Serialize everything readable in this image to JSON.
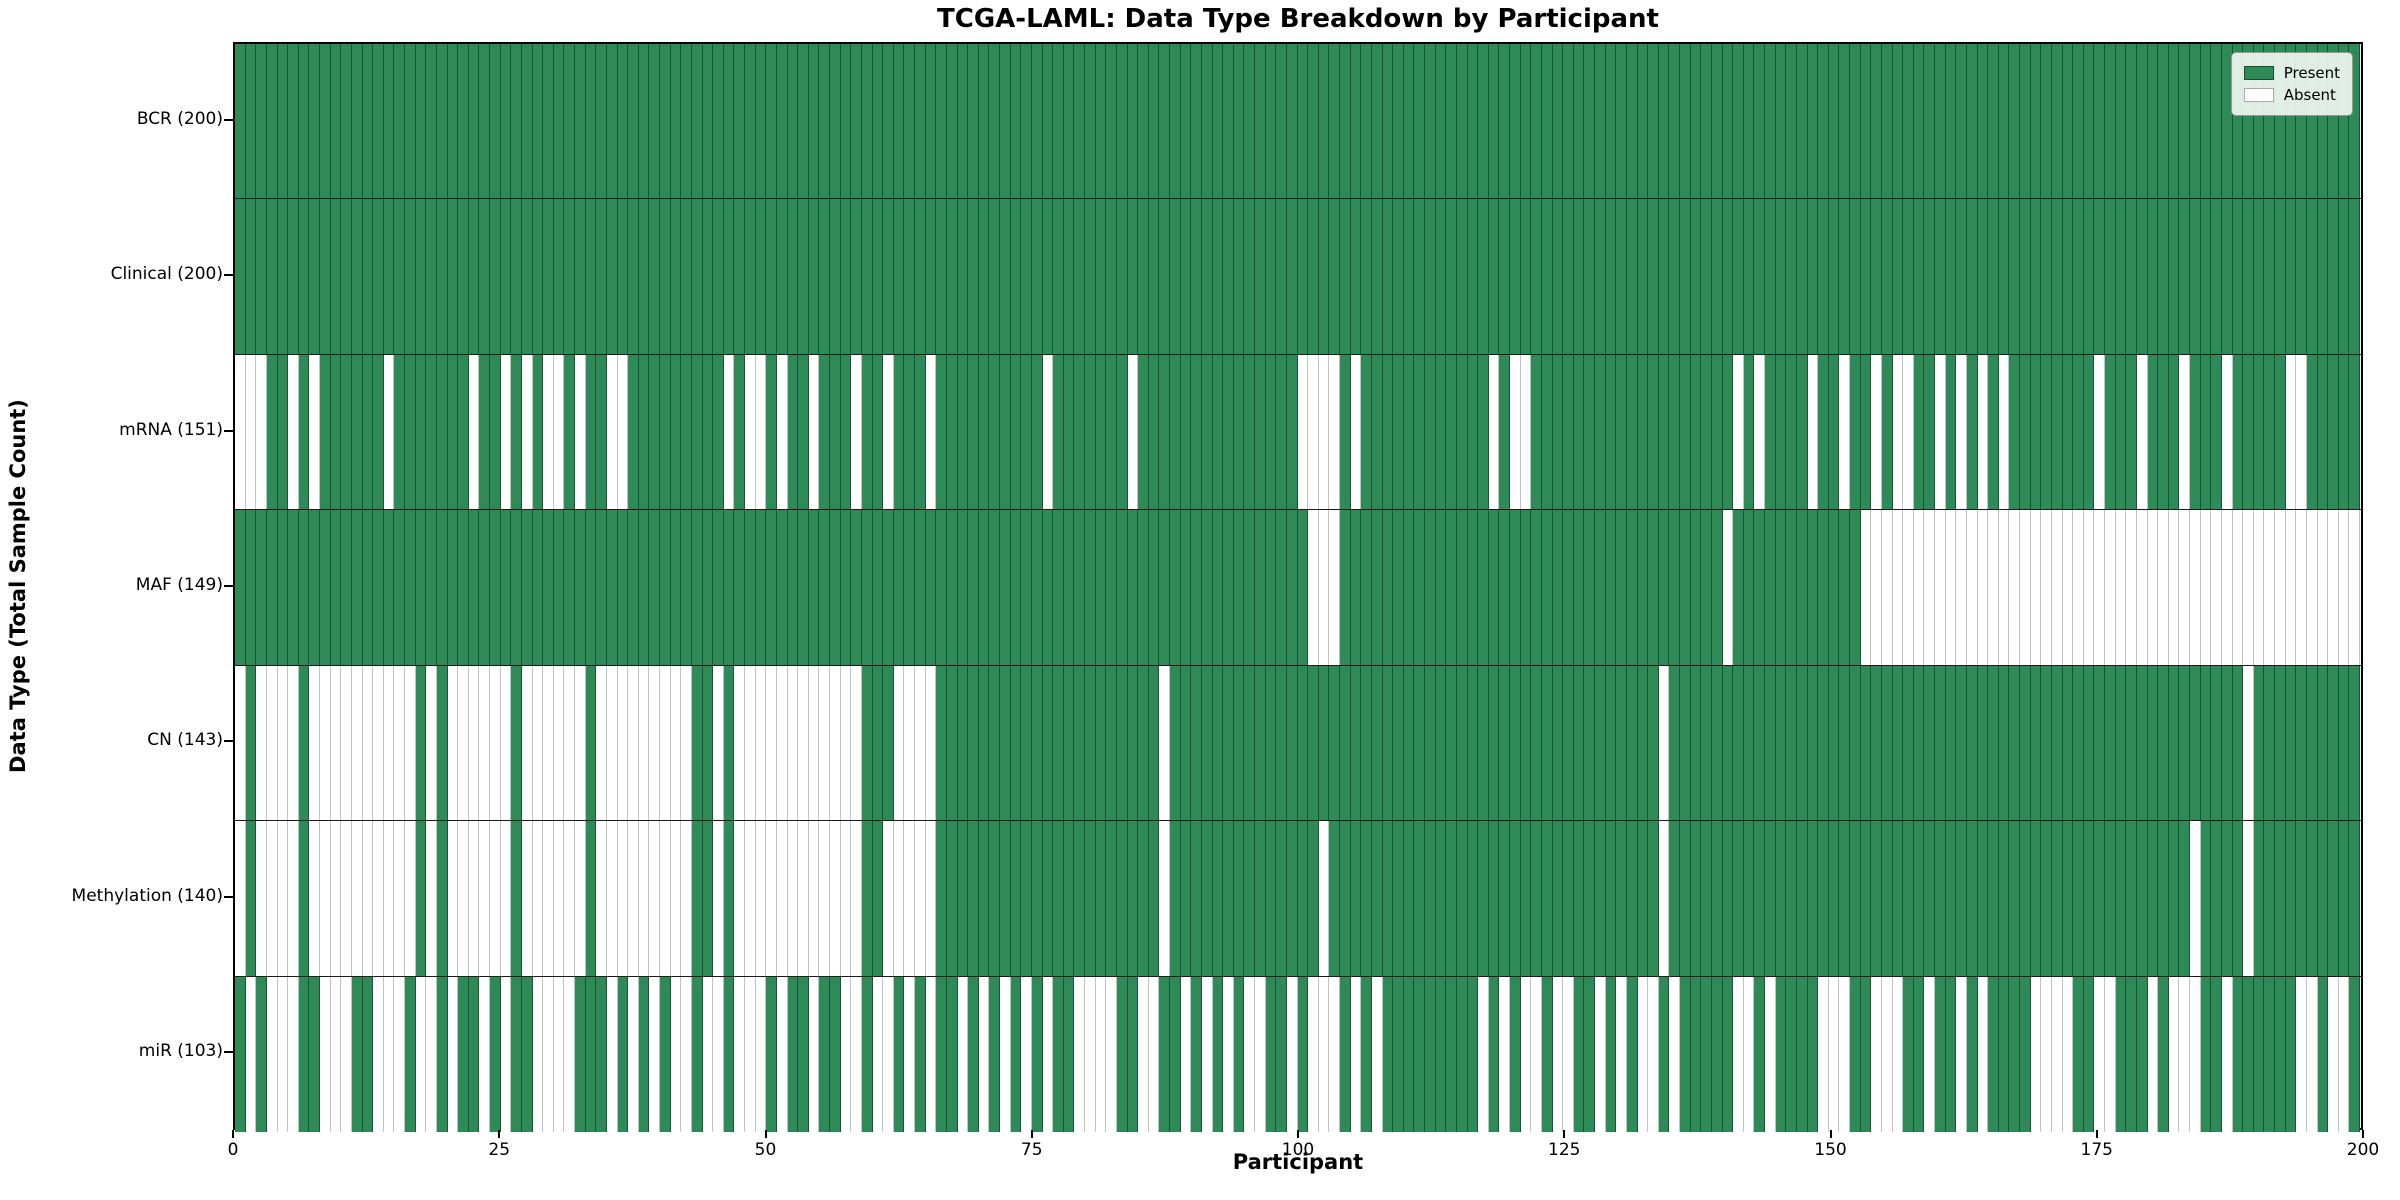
{
  "chart_data": {
    "type": "heatmap",
    "title": "TCGA-LAML: Data Type Breakdown by Participant",
    "xlabel": "Participant",
    "ylabel": "Data Type (Total Sample Count)",
    "x_ticks": [
      0,
      25,
      50,
      75,
      100,
      125,
      150,
      175,
      200
    ],
    "n_participants": 200,
    "x_range": [
      0,
      200
    ],
    "grid": "cell-outlines",
    "legend_position": "upper right",
    "colors": {
      "present": "#2e8b57",
      "absent": "#ffffff"
    },
    "legend": [
      {
        "label": "Present",
        "state": "present",
        "color": "#2e8b57"
      },
      {
        "label": "Absent",
        "state": "absent",
        "color": "#ffffff"
      }
    ],
    "rows": [
      {
        "label": "BCR (200)",
        "name": "BCR",
        "present_count": 200,
        "absent": []
      },
      {
        "label": "Clinical (200)",
        "name": "Clinical",
        "present_count": 200,
        "absent": []
      },
      {
        "label": "mRNA (151)",
        "name": "mRNA",
        "present_count": 151,
        "absent": [
          0,
          1,
          2,
          5,
          7,
          14,
          22,
          25,
          27,
          29,
          30,
          32,
          35,
          36,
          46,
          48,
          49,
          51,
          54,
          58,
          61,
          65,
          76,
          84,
          100,
          101,
          102,
          103,
          105,
          118,
          120,
          121,
          141,
          143,
          148,
          151,
          154,
          156,
          157,
          160,
          162,
          164,
          166,
          175,
          179,
          183,
          187,
          193,
          194
        ]
      },
      {
        "label": "MAF (149)",
        "name": "MAF",
        "present_count": 149,
        "absent": [
          101,
          102,
          103,
          140,
          153,
          154,
          155,
          156,
          157,
          158,
          159,
          160,
          161,
          162,
          163,
          164,
          165,
          166,
          167,
          168,
          169,
          170,
          171,
          172,
          173,
          174,
          175,
          176,
          177,
          178,
          179,
          180,
          181,
          182,
          183,
          184,
          185,
          186,
          187,
          188,
          189,
          190,
          191,
          192,
          193,
          194,
          195,
          196,
          197,
          198,
          199
        ]
      },
      {
        "label": "CN (143)",
        "name": "CN",
        "present_count": 143,
        "absent": [
          0,
          2,
          3,
          4,
          5,
          7,
          8,
          9,
          10,
          11,
          12,
          13,
          14,
          15,
          16,
          18,
          20,
          21,
          22,
          23,
          24,
          25,
          27,
          28,
          29,
          30,
          31,
          32,
          34,
          35,
          36,
          37,
          38,
          39,
          40,
          41,
          42,
          45,
          47,
          48,
          49,
          50,
          51,
          52,
          53,
          54,
          55,
          56,
          57,
          58,
          62,
          63,
          64,
          65,
          87,
          134,
          189
        ]
      },
      {
        "label": "Methylation (140)",
        "name": "Methylation",
        "present_count": 140,
        "absent": [
          0,
          2,
          3,
          4,
          5,
          7,
          8,
          9,
          10,
          11,
          12,
          13,
          14,
          15,
          16,
          18,
          20,
          21,
          22,
          23,
          24,
          25,
          27,
          28,
          29,
          30,
          31,
          32,
          34,
          35,
          36,
          37,
          38,
          39,
          40,
          41,
          42,
          45,
          47,
          48,
          49,
          50,
          51,
          52,
          53,
          54,
          55,
          56,
          57,
          58,
          61,
          62,
          63,
          64,
          65,
          87,
          102,
          134,
          184,
          189
        ]
      },
      {
        "label": "miR (103)",
        "name": "miR",
        "present_count": 103,
        "absent": [
          1,
          3,
          4,
          5,
          8,
          9,
          10,
          13,
          14,
          15,
          17,
          18,
          20,
          23,
          25,
          28,
          29,
          30,
          31,
          35,
          37,
          39,
          41,
          42,
          44,
          45,
          47,
          48,
          49,
          51,
          54,
          57,
          58,
          60,
          61,
          63,
          65,
          68,
          70,
          72,
          74,
          76,
          79,
          80,
          81,
          82,
          85,
          86,
          89,
          91,
          93,
          95,
          96,
          99,
          101,
          102,
          103,
          105,
          107,
          117,
          119,
          121,
          122,
          124,
          125,
          128,
          130,
          132,
          133,
          135,
          141,
          142,
          144,
          149,
          150,
          151,
          154,
          155,
          156,
          159,
          162,
          164,
          169,
          170,
          171,
          172,
          175,
          176,
          180,
          182,
          183,
          184,
          187,
          194,
          195,
          197,
          198
        ]
      }
    ]
  }
}
